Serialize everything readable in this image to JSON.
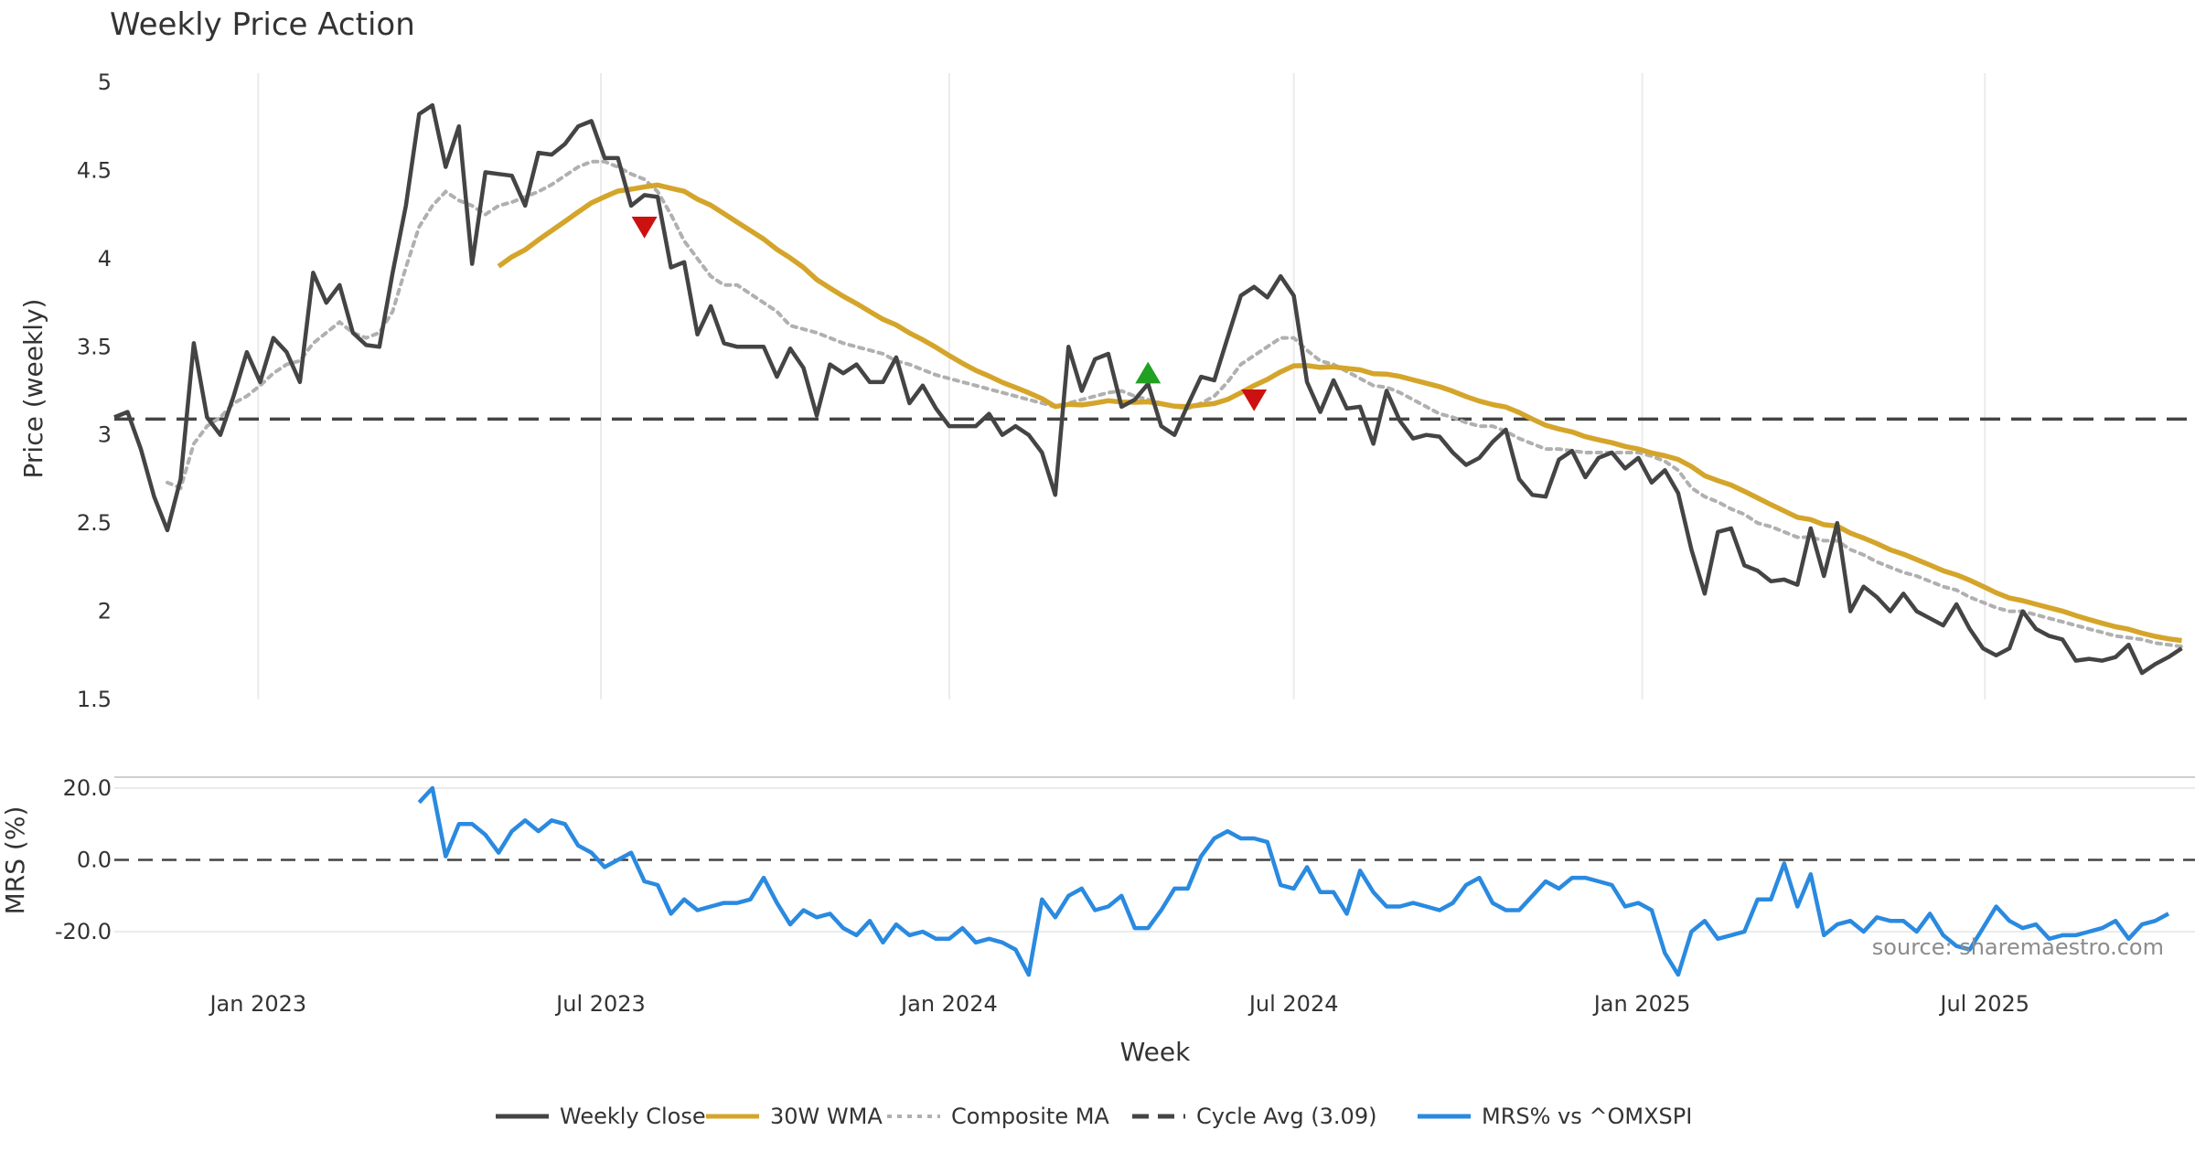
{
  "colors": {
    "close": "#444444",
    "wma": "#d4a52a",
    "composite": "#b0b0b0",
    "cycle": "#444444",
    "mrs": "#2a8ae0",
    "sell": "#cc1111",
    "buy": "#22a022",
    "grid": "#ebebeb"
  },
  "chart_data": [
    {
      "type": "line",
      "title": "Weekly Price Action",
      "ylabel": "Price (weekly)",
      "xlabel": "Week",
      "ylim": [
        1.5,
        5
      ],
      "yticks": [
        1.5,
        2,
        2.5,
        3,
        3.5,
        4,
        4.5,
        5
      ],
      "ytick_labels": [
        "1.5",
        "2",
        "2.5",
        "3",
        "3.5",
        "4",
        "4.5",
        "5"
      ],
      "xlim": [
        "2022-10-17",
        "2025-10-20"
      ],
      "xticks": [
        "2023-01-01",
        "2023-07-01",
        "2024-01-01",
        "2024-07-01",
        "2025-01-01",
        "2025-07-01"
      ],
      "xtick_labels": [
        "Jan 2023",
        "Jul 2023",
        "Jan 2024",
        "Jul 2024",
        "Jan 2025",
        "Jul 2025"
      ],
      "grid": true,
      "week_start": "2022-10-17",
      "series": [
        {
          "name": "Weekly Close",
          "style": "solid",
          "values": [
            3.1,
            3.13,
            2.92,
            2.65,
            2.46,
            2.75,
            3.52,
            3.1,
            3.0,
            3.22,
            3.47,
            3.3,
            3.55,
            3.47,
            3.3,
            3.92,
            3.75,
            3.85,
            3.58,
            3.51,
            3.5,
            3.92,
            4.3,
            4.82,
            4.87,
            4.52,
            4.75,
            3.97,
            4.49,
            4.48,
            4.47,
            4.3,
            4.6,
            4.59,
            4.65,
            4.75,
            4.78,
            4.57,
            4.57,
            4.3,
            4.36,
            4.35,
            3.95,
            3.98,
            3.57,
            3.73,
            3.52,
            3.5,
            3.5,
            3.5,
            3.33,
            3.49,
            3.38,
            3.11,
            3.4,
            3.35,
            3.4,
            3.3,
            3.3,
            3.44,
            3.18,
            3.28,
            3.15,
            3.05,
            3.05,
            3.05,
            3.12,
            3.0,
            3.05,
            3.0,
            2.9,
            2.66,
            3.5,
            3.25,
            3.43,
            3.46,
            3.16,
            3.2,
            3.29,
            3.05,
            3.0,
            3.17,
            3.33,
            3.31,
            3.55,
            3.79,
            3.84,
            3.78,
            3.9,
            3.79,
            3.3,
            3.13,
            3.31,
            3.15,
            3.16,
            2.95,
            3.25,
            3.08,
            2.98,
            3.0,
            2.99,
            2.9,
            2.83,
            2.87,
            2.96,
            3.03,
            2.75,
            2.66,
            2.65,
            2.86,
            2.91,
            2.76,
            2.87,
            2.9,
            2.81,
            2.87,
            2.73,
            2.8,
            2.67,
            2.35,
            2.1,
            2.45,
            2.47,
            2.26,
            2.23,
            2.17,
            2.18,
            2.15,
            2.47,
            2.2,
            2.5,
            2.0,
            2.14,
            2.08,
            2.0,
            2.1,
            2.0,
            1.96,
            1.92,
            2.04,
            1.9,
            1.79,
            1.75,
            1.79,
            2.0,
            1.9,
            1.86,
            1.84,
            1.72,
            1.73,
            1.72,
            1.74,
            1.81,
            1.65,
            1.7,
            1.74,
            1.79
          ]
        },
        {
          "name": "30W WMA",
          "style": "solid",
          "values": [
            null,
            null,
            null,
            null,
            null,
            null,
            null,
            null,
            null,
            null,
            null,
            null,
            null,
            null,
            null,
            null,
            null,
            null,
            null,
            null,
            null,
            null,
            null,
            null,
            null,
            null,
            null,
            null,
            null,
            null,
            null,
            null,
            null,
            null,
            null,
            null,
            null,
            null,
            null,
            null,
            null,
            null,
            null,
            null,
            null,
            null,
            null,
            null,
            null,
            null,
            null,
            null,
            null,
            null,
            null,
            null,
            null,
            null,
            null,
            null,
            null,
            null,
            null,
            null,
            null,
            null,
            null,
            null,
            null,
            null,
            null,
            null,
            null,
            null,
            null,
            null,
            null,
            null,
            null,
            null,
            null,
            null,
            null,
            null,
            null,
            null,
            null,
            null,
            null,
            null,
            null,
            null,
            null,
            null,
            null,
            null,
            null,
            null,
            null,
            null,
            null,
            null,
            null,
            null,
            null,
            null,
            null,
            null,
            null,
            null,
            null,
            null,
            null,
            null,
            null,
            null,
            null,
            null,
            null,
            null,
            null,
            null,
            null,
            null,
            null,
            null,
            null,
            null,
            null,
            null,
            null,
            null,
            null,
            null,
            null,
            null,
            null,
            null,
            null,
            null,
            null,
            null,
            null,
            null,
            null,
            null,
            null,
            null,
            null,
            null,
            null,
            null,
            null,
            null,
            null,
            null,
            null,
            null,
            null,
            null,
            null
          ]
        },
        {
          "name": "Composite MA",
          "style": "dotted",
          "values": [
            null,
            null,
            null,
            null,
            2.73,
            2.7,
            2.95,
            3.05,
            3.1,
            3.18,
            3.22,
            3.28,
            3.35,
            3.4,
            3.42,
            3.52,
            3.58,
            3.64,
            3.58,
            3.55,
            3.58,
            3.7,
            3.95,
            4.18,
            4.3,
            4.38,
            4.33,
            4.3,
            4.25,
            4.3,
            4.32,
            4.35,
            4.38,
            4.42,
            4.47,
            4.52,
            4.55,
            4.55,
            4.52,
            4.48,
            4.45,
            4.38,
            4.25,
            4.1,
            4.0,
            3.9,
            3.85,
            3.85,
            3.8,
            3.75,
            3.7,
            3.62,
            3.6,
            3.58,
            3.55,
            3.52,
            3.5,
            3.48,
            3.46,
            3.42,
            3.4,
            3.37,
            3.34,
            3.32,
            3.3,
            3.28,
            3.26,
            3.24,
            3.22,
            3.2,
            3.18,
            3.16,
            3.18,
            3.2,
            3.22,
            3.24,
            3.25,
            3.22,
            3.2,
            3.18,
            3.16,
            3.15,
            3.18,
            3.22,
            3.3,
            3.4,
            3.45,
            3.5,
            3.55,
            3.55,
            3.48,
            3.42,
            3.4,
            3.36,
            3.32,
            3.28,
            3.27,
            3.24,
            3.2,
            3.16,
            3.12,
            3.1,
            3.07,
            3.05,
            3.05,
            3.02,
            2.98,
            2.95,
            2.92,
            2.92,
            2.91,
            2.9,
            2.9,
            2.9,
            2.9,
            2.9,
            2.88,
            2.85,
            2.8,
            2.7,
            2.65,
            2.62,
            2.58,
            2.55,
            2.5,
            2.48,
            2.45,
            2.42,
            2.42,
            2.4,
            2.4,
            2.35,
            2.32,
            2.28,
            2.25,
            2.22,
            2.2,
            2.17,
            2.14,
            2.12,
            2.08,
            2.05,
            2.02,
            2.0,
            2.0,
            1.98,
            1.96,
            1.94,
            1.92,
            1.9,
            1.88,
            1.86,
            1.85,
            1.84,
            1.82,
            1.81,
            1.8
          ]
        },
        {
          "name": "Cycle Avg (3.09)",
          "style": "dashed",
          "y": 3.09
        }
      ],
      "markers": [
        {
          "type": "sell",
          "week": 40,
          "y": 4.18
        },
        {
          "type": "buy",
          "week": 78,
          "y": 3.35
        },
        {
          "type": "sell",
          "week": 86,
          "y": 3.2
        }
      ]
    },
    {
      "type": "line",
      "ylabel": "MRS (%)",
      "ylim": [
        -32,
        22
      ],
      "yticks": [
        -20,
        0,
        20
      ],
      "ytick_labels": [
        "-20.0",
        "0.0",
        "20.0"
      ],
      "zero_line": "dashed",
      "series": [
        {
          "name": "MRS% vs ^OMXSPI",
          "start_week": 23,
          "values": [
            16,
            20,
            1,
            10,
            10,
            7,
            2,
            8,
            11,
            8,
            11,
            10,
            4,
            2,
            -2,
            0,
            2,
            -6,
            -7,
            -15,
            -11,
            -14,
            -13,
            -12,
            -12,
            -11,
            -5,
            -12,
            -18,
            -14,
            -16,
            -15,
            -19,
            -21,
            -17,
            -23,
            -18,
            -21,
            -20,
            -22,
            -22,
            -19,
            -23,
            -22,
            -23,
            -25,
            -32,
            -11,
            -16,
            -10,
            -8,
            -14,
            -13,
            -10,
            -19,
            -19,
            -14,
            -8,
            -8,
            1,
            6,
            8,
            6,
            6,
            5,
            -7,
            -8,
            -2,
            -9,
            -9,
            -15,
            -3,
            -9,
            -13,
            -13,
            -12,
            -13,
            -14,
            -12,
            -7,
            -5,
            -12,
            -14,
            -14,
            -10,
            -6,
            -8,
            -5,
            -5,
            -6,
            -7,
            -13,
            -12,
            -14,
            -26,
            -32,
            -20,
            -17,
            -22,
            -21,
            -20,
            -11,
            -11,
            -1,
            -13,
            -4,
            -21,
            -18,
            -17,
            -20,
            -16,
            -17,
            -17,
            -20,
            -15,
            -21,
            -24,
            -25,
            -19,
            -13,
            -17,
            -19,
            -18,
            -22,
            -21,
            -21,
            -20,
            -19,
            -17,
            -22,
            -18,
            -17,
            -15
          ]
        }
      ]
    }
  ],
  "legend": {
    "placement": "bottom",
    "items": [
      {
        "label": "Weekly Close",
        "style": "solid",
        "color_key": "close"
      },
      {
        "label": "30W WMA",
        "style": "solid",
        "color_key": "wma"
      },
      {
        "label": "Composite MA",
        "style": "dotted",
        "color_key": "composite"
      },
      {
        "label": "Cycle Avg (3.09)",
        "style": "dashed",
        "color_key": "cycle"
      },
      {
        "label": "MRS% vs ^OMXSPI",
        "style": "solid",
        "color_key": "mrs"
      }
    ]
  },
  "source": "source: sharemaestro.com"
}
